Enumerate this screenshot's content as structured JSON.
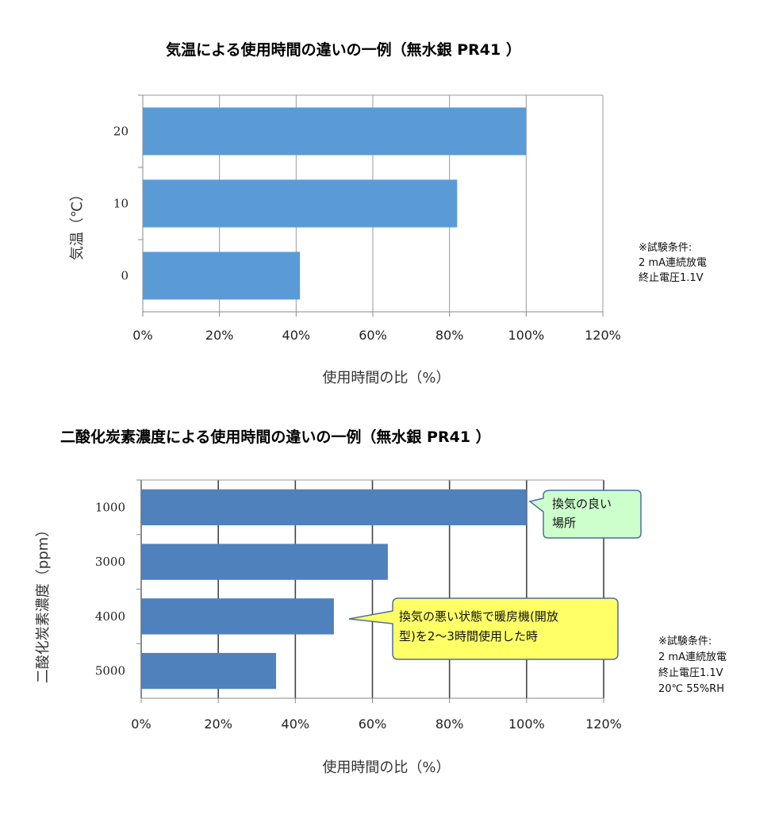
{
  "chart_data": [
    {
      "type": "bar",
      "orientation": "horizontal",
      "title": "気温による使用時間の違いの一例（無水銀 PR41 ）",
      "ylabel": "気温（℃）",
      "xlabel": "使用時間の比（%）",
      "categories": [
        "20",
        "10",
        "0"
      ],
      "values": [
        100,
        82,
        41
      ],
      "xlim": [
        0,
        120
      ],
      "xticks": [
        "0%",
        "20%",
        "40%",
        "60%",
        "80%",
        "100%",
        "120%"
      ],
      "grid": true,
      "bar_color": "#5b9bd5",
      "notes": [
        "※試験条件:",
        "2 mA連続放電",
        "終止電圧1.1V"
      ]
    },
    {
      "type": "bar",
      "orientation": "horizontal",
      "title": "二酸化炭素濃度による使用時間の違いの一例（無水銀 PR41 ）",
      "ylabel": "二酸化炭素濃度（ppm）",
      "xlabel": "使用時間の比（%）",
      "categories": [
        "1000",
        "3000",
        "4000",
        "5000"
      ],
      "values": [
        100,
        64,
        50,
        35
      ],
      "xlim": [
        0,
        120
      ],
      "xticks": [
        "0%",
        "20%",
        "40%",
        "60%",
        "80%",
        "100%",
        "120%"
      ],
      "grid": true,
      "bar_color": "#4f81bd",
      "notes": [
        "※試験条件:",
        "2 mA連続放電",
        "終止電圧1.1V",
        "20℃ 55%RH"
      ],
      "annotations": [
        {
          "text_lines": [
            "換気の良い",
            "場所"
          ],
          "category": "1000",
          "fill": "#ccffcc"
        },
        {
          "text_lines": [
            "換気の悪い状態で暖房機(開放",
            "型)を2～3時間使用した時"
          ],
          "category": "4000",
          "fill": "#ffff66"
        }
      ]
    }
  ]
}
